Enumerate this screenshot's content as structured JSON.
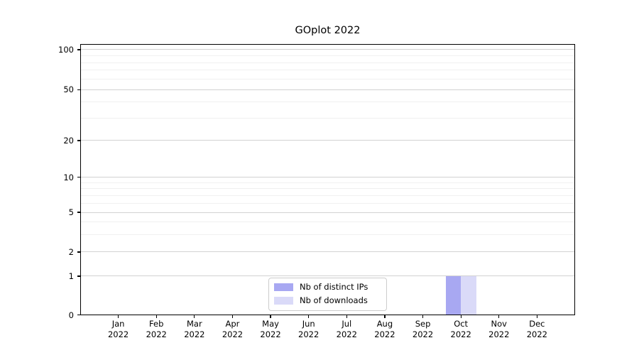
{
  "chart_data": {
    "type": "bar",
    "title": "GOplot 2022",
    "x": {
      "categories": [
        "Jan",
        "Feb",
        "Mar",
        "Apr",
        "May",
        "Jun",
        "Jul",
        "Aug",
        "Sep",
        "Oct",
        "Nov",
        "Dec"
      ],
      "year": "2022"
    },
    "series": [
      {
        "name": "Nb of distinct IPs",
        "color": "#a8a8f2",
        "values": [
          0,
          0,
          0,
          0,
          0,
          0,
          0,
          0,
          0,
          1,
          0,
          0
        ]
      },
      {
        "name": "Nb of downloads",
        "color": "#dadaf8",
        "values": [
          0,
          0,
          0,
          0,
          0,
          0,
          0,
          0,
          0,
          1,
          0,
          0
        ]
      }
    ],
    "y_axis": {
      "ticks": [
        0,
        1,
        2,
        5,
        10,
        20,
        50,
        100
      ],
      "minor_ticks": [
        3,
        4,
        6,
        7,
        8,
        9,
        30,
        40,
        60,
        70,
        80,
        90
      ],
      "scale": "log above 1, linear 0-1",
      "ylim": [
        0,
        105
      ]
    },
    "xlabel": "",
    "ylabel": "",
    "legend_position": "bottom-center",
    "grid": {
      "horizontal_major": true,
      "horizontal_minor": true,
      "major_color": "#d2d2d2",
      "minor_color": "#f0f0f0"
    }
  }
}
